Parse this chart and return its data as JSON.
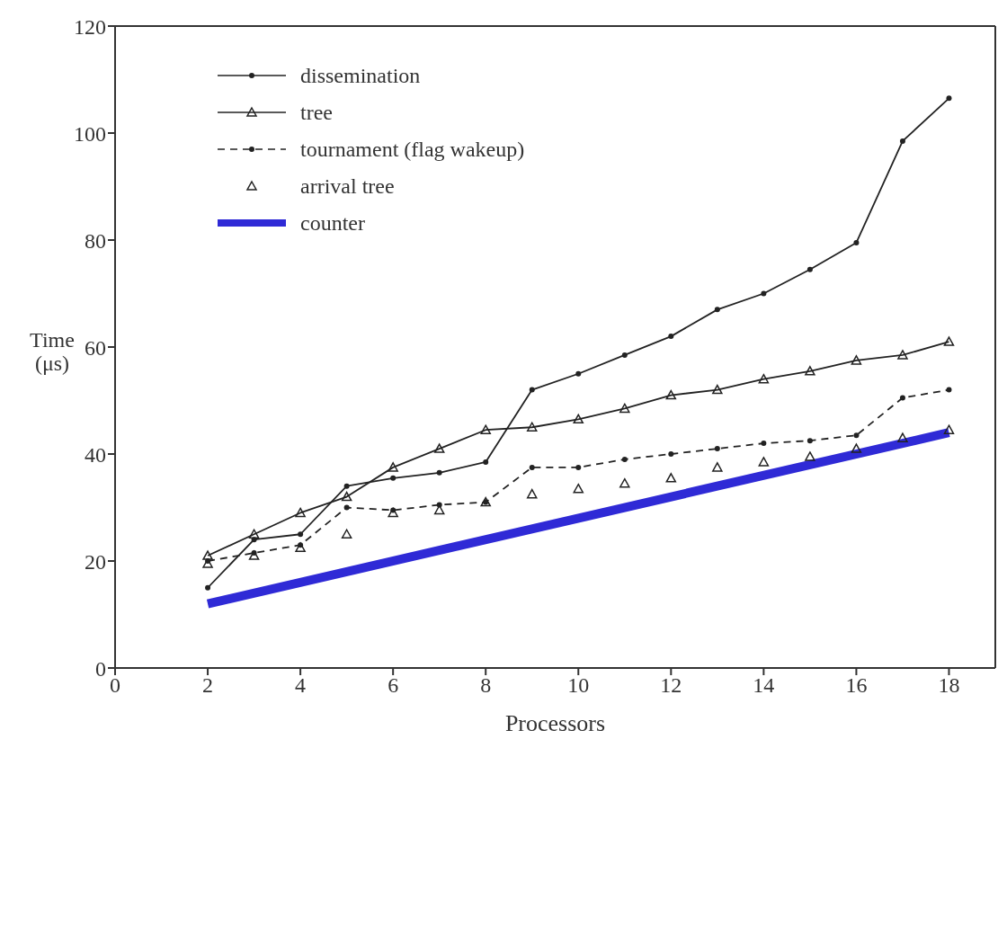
{
  "chart_data": {
    "type": "line",
    "xlabel": "Processors",
    "ylabel": "Time (μs)",
    "x": [
      2,
      3,
      4,
      5,
      6,
      7,
      8,
      9,
      10,
      11,
      12,
      13,
      14,
      15,
      16,
      17,
      18
    ],
    "xlim": [
      0,
      19
    ],
    "xticks": [
      0,
      2,
      4,
      6,
      8,
      10,
      12,
      14,
      16,
      18
    ],
    "ylim": [
      0,
      120
    ],
    "yticks": [
      0,
      20,
      40,
      60,
      80,
      100,
      120
    ],
    "legend": "top left",
    "series": [
      {
        "name": "dissemination",
        "color": "#222222",
        "marker": "circle",
        "line_style": "solid",
        "values": [
          15,
          24,
          25,
          34,
          35.5,
          36.5,
          38.5,
          52,
          55,
          58.5,
          62,
          67,
          70,
          74.5,
          79.5,
          98.5,
          106.5
        ]
      },
      {
        "name": "tree",
        "color": "#222222",
        "marker": "triangle",
        "line_style": "solid",
        "values": [
          21,
          25,
          29,
          32,
          37.5,
          41,
          44.5,
          45,
          46.5,
          48.5,
          51,
          52,
          54,
          55.5,
          57.5,
          58.5,
          61
        ]
      },
      {
        "name": "tournament (flag wakeup)",
        "color": "#222222",
        "marker": "circle",
        "line_style": "dashed",
        "values": [
          20,
          21.5,
          23,
          30,
          29.5,
          30.5,
          31,
          37.5,
          37.5,
          39,
          40,
          41,
          42,
          42.5,
          43.5,
          50.5,
          52
        ]
      },
      {
        "name": "arrival tree",
        "type": "scatter",
        "color": "#222222",
        "marker": "triangle",
        "values": [
          19.5,
          21,
          22.5,
          25,
          29,
          29.5,
          31,
          32.5,
          33.5,
          34.5,
          35.5,
          37.5,
          38.5,
          39.5,
          41,
          43,
          44.5
        ]
      },
      {
        "name": "counter",
        "color": "#2f2ad6",
        "marker": "none",
        "line_style": "solid",
        "x": [
          2,
          18
        ],
        "values": [
          12,
          44
        ]
      }
    ]
  }
}
